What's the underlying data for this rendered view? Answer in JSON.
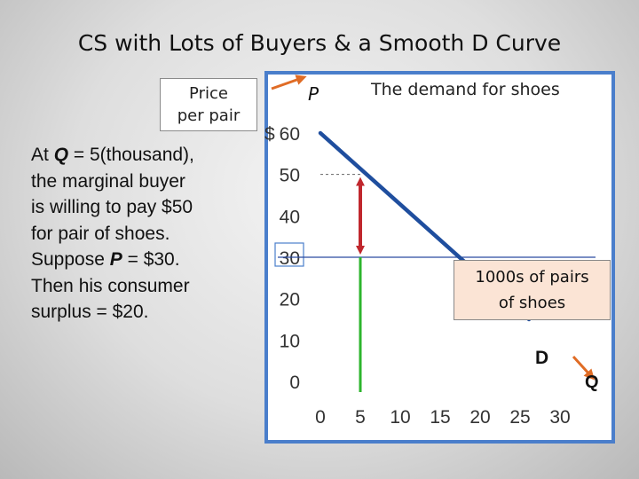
{
  "slide": {
    "title": "CS with Lots of Buyers & a Smooth D Curve",
    "price_box": {
      "line1": "Price",
      "line2": "per pair"
    },
    "explanation": [
      [
        {
          "t": "At "
        },
        {
          "t": "Q",
          "em": true
        },
        {
          "t": " = 5(thousand),"
        }
      ],
      [
        {
          "t": "the marginal buyer"
        }
      ],
      [
        {
          "t": "is willing to pay $50"
        }
      ],
      [
        {
          "t": "for pair of shoes."
        }
      ],
      [
        {
          "t": "Suppose "
        },
        {
          "t": "P",
          "em": true
        },
        {
          "t": " = $30."
        }
      ],
      [
        {
          "t": "Then his consumer"
        }
      ],
      [
        {
          "t": "surplus = $20."
        }
      ]
    ],
    "units_box": {
      "line1": "1000s of pairs",
      "line2": "of shoes"
    }
  },
  "chart_data": {
    "type": "line",
    "title": "The demand for shoes",
    "ylabel": "P",
    "y_currency": "$",
    "series": [
      {
        "name": "D",
        "x": [
          0,
          30
        ],
        "y": [
          60,
          0
        ]
      }
    ],
    "x_ticks": [
      0,
      5,
      10,
      15,
      20,
      25,
      30
    ],
    "y_ticks": [
      0,
      10,
      20,
      30,
      40,
      50,
      60
    ],
    "xlim": [
      0,
      30
    ],
    "ylim": [
      0,
      60
    ],
    "highlighted_tick": 30,
    "xlabel_label": "Q",
    "market_price": 30,
    "marginal_buyer": {
      "q": 5,
      "willingness_to_pay": 50
    },
    "consumer_surplus": 20,
    "grid": false,
    "colors": {
      "demand": "#1f4e9e",
      "willingness_line": "#2db52d",
      "surplus_arrow": "#c0272d",
      "price_line": "#2a4aa0",
      "frame": "#4a7ecb",
      "callout_arrow": "#e06c25",
      "units_box_fill": "#fbe4d5"
    }
  }
}
